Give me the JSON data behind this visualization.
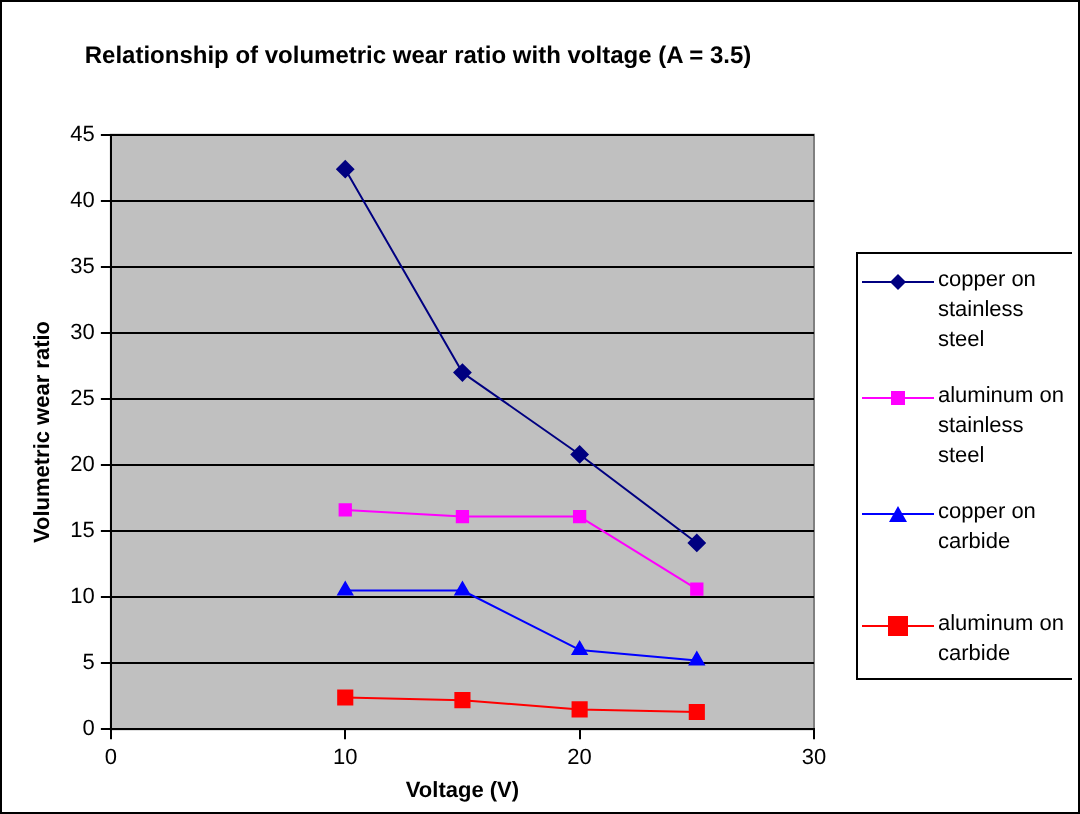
{
  "chart_data": {
    "type": "line",
    "title": "Relationship of volumetric wear ratio with voltage (A = 3.5)",
    "xlabel": "Voltage (V)",
    "ylabel": "Volumetric wear ratio",
    "x": [
      10,
      15,
      20,
      25
    ],
    "series": [
      {
        "name": "copper on stainless steel",
        "color": "#000080",
        "marker": "diamond",
        "values": [
          42.4,
          27.0,
          20.8,
          14.1
        ]
      },
      {
        "name": "aluminum on stainless steel",
        "color": "#ff00ff",
        "marker": "square",
        "values": [
          16.6,
          16.1,
          16.1,
          10.6
        ]
      },
      {
        "name": "copper on carbide",
        "color": "#0000ff",
        "marker": "triangle",
        "values": [
          10.5,
          10.5,
          6.0,
          5.2
        ]
      },
      {
        "name": "aluminum on carbide",
        "color": "#ff0000",
        "marker": "square",
        "values": [
          2.4,
          2.2,
          1.5,
          1.3
        ]
      }
    ],
    "xlim": [
      0,
      30
    ],
    "xticks": [
      0,
      10,
      20,
      30
    ],
    "ylim": [
      0,
      45
    ],
    "yticks": [
      0,
      5,
      10,
      15,
      20,
      25,
      30,
      35,
      40,
      45
    ],
    "grid": "y",
    "legend": "right"
  }
}
